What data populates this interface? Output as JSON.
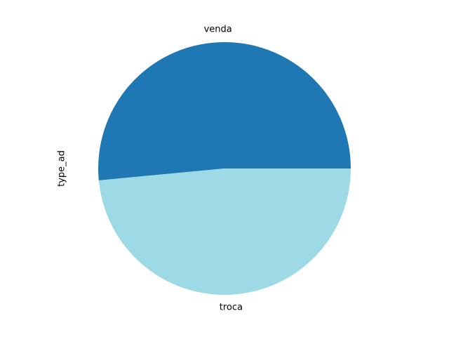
{
  "chart_data": {
    "type": "pie",
    "ylabel": "type_ad",
    "categories": [
      "venda",
      "troca"
    ],
    "values": [
      51.5,
      48.5
    ],
    "colors": [
      "#1f77b4",
      "#9edae5"
    ],
    "start_angle_deg": 0,
    "direction": "counterclockwise"
  }
}
